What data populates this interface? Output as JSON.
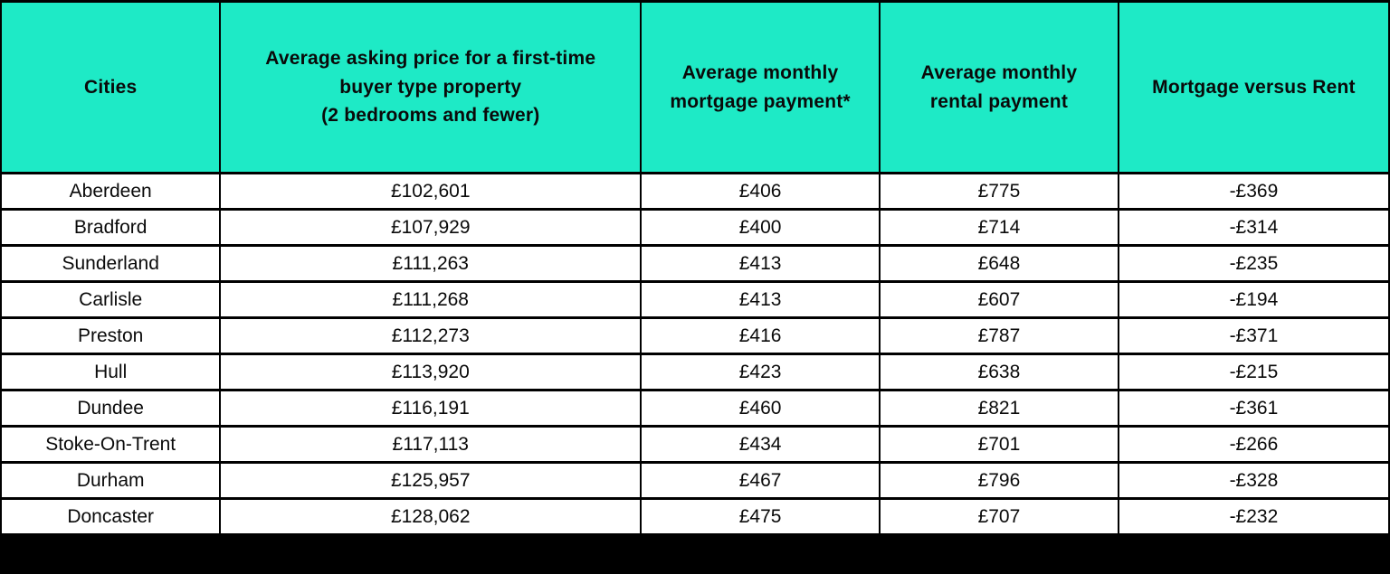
{
  "colors": {
    "header_bg": "#1eeac6",
    "grid_border": "#000000",
    "text": "#0a0a0a",
    "row_bg": "#ffffff"
  },
  "table": {
    "columns": [
      {
        "label": "Cities"
      },
      {
        "label": "Average asking price for a first-time\nbuyer type property\n(2 bedrooms and fewer)"
      },
      {
        "label": "Average monthly\nmortgage payment*"
      },
      {
        "label": "Average monthly\nrental payment"
      },
      {
        "label": "Mortgage versus Rent"
      }
    ],
    "rows": [
      [
        "Aberdeen",
        "£102,601",
        "£406",
        "£775",
        "-£369"
      ],
      [
        "Bradford",
        "£107,929",
        "£400",
        "£714",
        "-£314"
      ],
      [
        "Sunderland",
        "£111,263",
        "£413",
        "£648",
        "-£235"
      ],
      [
        "Carlisle",
        "£111,268",
        "£413",
        "£607",
        "-£194"
      ],
      [
        "Preston",
        "£112,273",
        "£416",
        "£787",
        "-£371"
      ],
      [
        "Hull",
        "£113,920",
        "£423",
        "£638",
        "-£215"
      ],
      [
        "Dundee",
        "£116,191",
        "£460",
        "£821",
        "-£361"
      ],
      [
        "Stoke-On-Trent",
        "£117,113",
        "£434",
        "£701",
        "-£266"
      ],
      [
        "Durham",
        "£125,957",
        "£467",
        "£796",
        "-£328"
      ],
      [
        "Doncaster",
        "£128,062",
        "£475",
        "£707",
        "-£232"
      ]
    ]
  },
  "chart_data": {
    "type": "table",
    "title": "",
    "categories": [
      "Aberdeen",
      "Bradford",
      "Sunderland",
      "Carlisle",
      "Preston",
      "Hull",
      "Dundee",
      "Stoke-On-Trent",
      "Durham",
      "Doncaster"
    ],
    "series": [
      {
        "name": "Average asking price for a first-time buyer type property (2 bedrooms and fewer)",
        "values": [
          102601,
          107929,
          111263,
          111268,
          112273,
          113920,
          116191,
          117113,
          125957,
          128062
        ]
      },
      {
        "name": "Average monthly mortgage payment*",
        "values": [
          406,
          400,
          413,
          413,
          416,
          423,
          460,
          434,
          467,
          475
        ]
      },
      {
        "name": "Average monthly rental payment",
        "values": [
          775,
          714,
          648,
          607,
          787,
          638,
          821,
          701,
          796,
          707
        ]
      },
      {
        "name": "Mortgage versus Rent",
        "values": [
          -369,
          -314,
          -235,
          -194,
          -371,
          -215,
          -361,
          -266,
          -328,
          -232
        ]
      }
    ],
    "currency": "GBP",
    "layout_hints": {
      "header_fill": "#1eeac6",
      "grid": true,
      "legend_position": "none"
    }
  }
}
